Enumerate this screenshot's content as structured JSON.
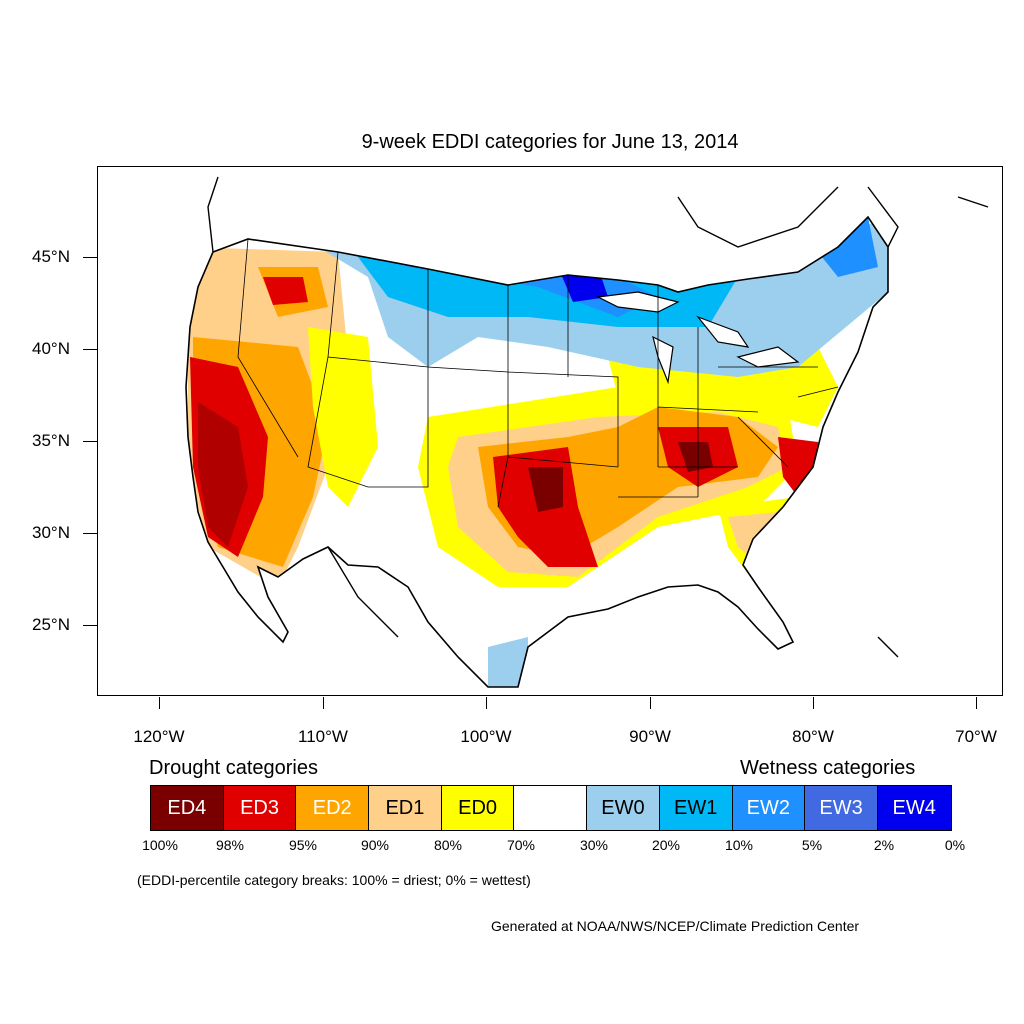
{
  "title": "9-week EDDI categories for June 13, 2014",
  "axes": {
    "latitude_labels": [
      "45°N",
      "40°N",
      "35°N",
      "30°N",
      "25°N"
    ],
    "longitude_labels": [
      "120°W",
      "110°W",
      "100°W",
      "90°W",
      "80°W",
      "70°W"
    ]
  },
  "legend": {
    "drought_label": "Drought categories",
    "wetness_label": "Wetness categories",
    "categories": [
      {
        "label": "ED4",
        "color": "#7a0000",
        "text_color": "#ffffff"
      },
      {
        "label": "ED3",
        "color": "#e00000",
        "text_color": "#ffffff"
      },
      {
        "label": "ED2",
        "color": "#ffa500",
        "text_color": "#ffffff"
      },
      {
        "label": "ED1",
        "color": "#ffd08a",
        "text_color": "#000000"
      },
      {
        "label": "ED0",
        "color": "#ffff00",
        "text_color": "#000000"
      },
      {
        "label": "",
        "color": "#ffffff",
        "text_color": "#000000"
      },
      {
        "label": "EW0",
        "color": "#9ccfee",
        "text_color": "#000000"
      },
      {
        "label": "EW1",
        "color": "#00b8f5",
        "text_color": "#000000"
      },
      {
        "label": "EW2",
        "color": "#1e90ff",
        "text_color": "#ffffff"
      },
      {
        "label": "EW3",
        "color": "#4169e1",
        "text_color": "#ffffff"
      },
      {
        "label": "EW4",
        "color": "#0000ee",
        "text_color": "#ffffff"
      }
    ],
    "percentiles": [
      "100%",
      "98%",
      "95%",
      "90%",
      "80%",
      "70%",
      "30%",
      "20%",
      "10%",
      "5%",
      "2%",
      "0%"
    ]
  },
  "note": "(EDDI-percentile category breaks: 100% = driest; 0% = wettest)",
  "credit": "Generated at NOAA/NWS/NCEP/Climate Prediction Center",
  "colors": {
    "ocean": "#ffffff",
    "border": "#000000"
  }
}
